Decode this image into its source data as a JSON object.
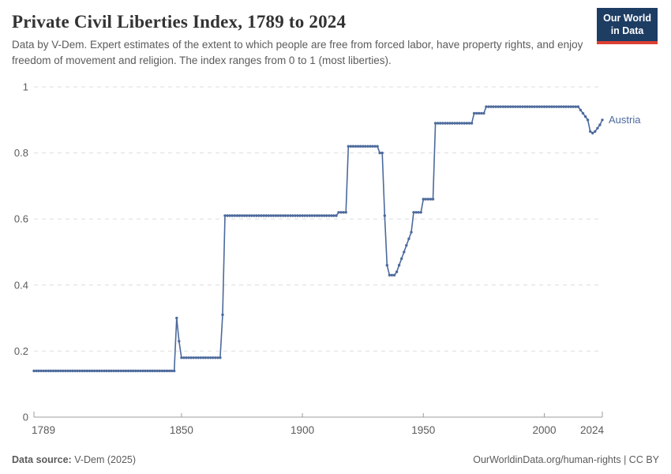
{
  "header": {
    "title": "Private Civil Liberties Index, 1789 to 2024",
    "subtitle": "Data by V-Dem. Expert estimates of the extent to which people are free from forced labor, have property rights, and enjoy freedom of movement and religion. The index ranges from 0 to 1 (most liberties).",
    "logo": {
      "line1": "Our World",
      "line2": "in Data",
      "bg": "#1d3d63",
      "accent": "#dc3f33"
    }
  },
  "chart_data": {
    "type": "line",
    "title": "Private Civil Liberties Index, 1789 to 2024",
    "xlabel": "",
    "ylabel": "",
    "xlim": [
      1789,
      2024
    ],
    "ylim": [
      0,
      1
    ],
    "x_ticks": [
      1789,
      1850,
      1900,
      1950,
      2000,
      2024
    ],
    "y_ticks": [
      0,
      0.2,
      0.4,
      0.6,
      0.8,
      1
    ],
    "grid": "horizontal-dashed",
    "legend_position": "end-of-line-label",
    "colors": {
      "line": "#4C6A9C",
      "grid": "#dedede",
      "axis": "#9c9c9c",
      "tick_text": "#5b5b5b"
    },
    "series": [
      {
        "name": "Austria",
        "color": "#4C6A9C",
        "segments": [
          {
            "from": 1789,
            "to": 1847,
            "value": 0.14
          },
          {
            "from": 1848,
            "to": 1848,
            "value": 0.3
          },
          {
            "from": 1849,
            "to": 1849,
            "value": 0.23
          },
          {
            "from": 1850,
            "to": 1866,
            "value": 0.18
          },
          {
            "from": 1867,
            "to": 1867,
            "value": 0.31
          },
          {
            "from": 1868,
            "to": 1914,
            "value": 0.61
          },
          {
            "from": 1915,
            "to": 1918,
            "value": 0.62
          },
          {
            "from": 1919,
            "to": 1931,
            "value": 0.82
          },
          {
            "from": 1932,
            "to": 1933,
            "value": 0.8
          },
          {
            "from": 1934,
            "to": 1934,
            "value": 0.61
          },
          {
            "from": 1935,
            "to": 1935,
            "value": 0.46
          },
          {
            "from": 1936,
            "to": 1938,
            "value": 0.43
          },
          {
            "from": 1939,
            "to": 1939,
            "value": 0.44
          },
          {
            "from": 1940,
            "to": 1940,
            "value": 0.46
          },
          {
            "from": 1941,
            "to": 1941,
            "value": 0.48
          },
          {
            "from": 1942,
            "to": 1942,
            "value": 0.5
          },
          {
            "from": 1943,
            "to": 1943,
            "value": 0.52
          },
          {
            "from": 1944,
            "to": 1944,
            "value": 0.54
          },
          {
            "from": 1945,
            "to": 1945,
            "value": 0.56
          },
          {
            "from": 1946,
            "to": 1949,
            "value": 0.62
          },
          {
            "from": 1950,
            "to": 1954,
            "value": 0.66
          },
          {
            "from": 1955,
            "to": 1970,
            "value": 0.89
          },
          {
            "from": 1971,
            "to": 1975,
            "value": 0.92
          },
          {
            "from": 1976,
            "to": 2014,
            "value": 0.94
          },
          {
            "from": 2015,
            "to": 2015,
            "value": 0.93
          },
          {
            "from": 2016,
            "to": 2016,
            "value": 0.92
          },
          {
            "from": 2017,
            "to": 2017,
            "value": 0.91
          },
          {
            "from": 2018,
            "to": 2018,
            "value": 0.9
          },
          {
            "from": 2019,
            "to": 2019,
            "value": 0.865
          },
          {
            "from": 2020,
            "to": 2020,
            "value": 0.86
          },
          {
            "from": 2021,
            "to": 2021,
            "value": 0.865
          },
          {
            "from": 2022,
            "to": 2022,
            "value": 0.875
          },
          {
            "from": 2023,
            "to": 2023,
            "value": 0.885
          },
          {
            "from": 2024,
            "to": 2024,
            "value": 0.9
          }
        ]
      }
    ]
  },
  "footer": {
    "source_label": "Data source:",
    "source_value": " V-Dem (2025)",
    "link": "OurWorldinData.org/human-rights | CC BY"
  }
}
